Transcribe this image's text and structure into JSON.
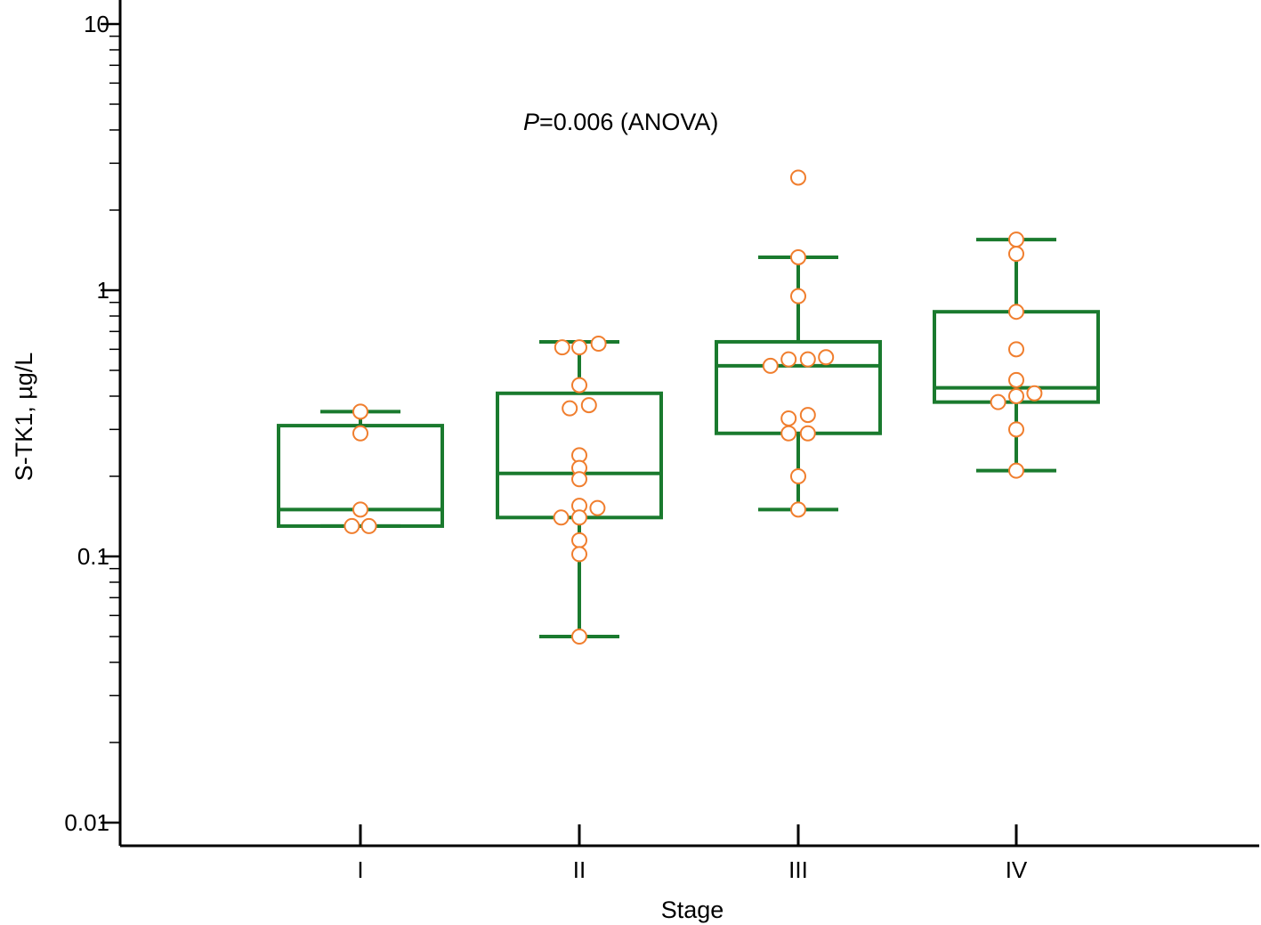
{
  "chart_data": {
    "type": "box",
    "xlabel": "Stage",
    "ylabel": "S-TK1, µg/L",
    "yscale": "log",
    "ylim": [
      0.01,
      10
    ],
    "yticks": [
      {
        "value": 0.01,
        "label": "0.01"
      },
      {
        "value": 0.1,
        "label": "0.1"
      },
      {
        "value": 1,
        "label": "1"
      },
      {
        "value": 10,
        "label": "10"
      }
    ],
    "annotation": {
      "italic": "P",
      "text": "=0.006 (ANOVA)"
    },
    "colors": {
      "box": "#1a7a2e",
      "points": "#f07e2e",
      "axis": "#000000"
    },
    "categories": [
      "I",
      "II",
      "III",
      "IV"
    ],
    "groups": [
      {
        "category": "I",
        "box": {
          "whisker_low": 0.13,
          "q1": 0.13,
          "median": 0.15,
          "q3": 0.31,
          "whisker_high": 0.35
        },
        "points": [
          {
            "y": 0.35,
            "dx": 0
          },
          {
            "y": 0.29,
            "dx": 0
          },
          {
            "y": 0.15,
            "dx": 0
          },
          {
            "y": 0.13,
            "dx": -0.4
          },
          {
            "y": 0.13,
            "dx": 0.4
          }
        ]
      },
      {
        "category": "II",
        "box": {
          "whisker_low": 0.05,
          "q1": 0.14,
          "median": 0.205,
          "q3": 0.41,
          "whisker_high": 0.64
        },
        "points": [
          {
            "y": 0.63,
            "dx": 0.9
          },
          {
            "y": 0.61,
            "dx": -0.8
          },
          {
            "y": 0.61,
            "dx": 0
          },
          {
            "y": 0.44,
            "dx": 0
          },
          {
            "y": 0.37,
            "dx": 0.45
          },
          {
            "y": 0.36,
            "dx": -0.45
          },
          {
            "y": 0.24,
            "dx": 0
          },
          {
            "y": 0.215,
            "dx": 0
          },
          {
            "y": 0.195,
            "dx": 0
          },
          {
            "y": 0.155,
            "dx": 0
          },
          {
            "y": 0.152,
            "dx": 0.85
          },
          {
            "y": 0.14,
            "dx": -0.85
          },
          {
            "y": 0.14,
            "dx": 0
          },
          {
            "y": 0.115,
            "dx": 0
          },
          {
            "y": 0.102,
            "dx": 0
          },
          {
            "y": 0.05,
            "dx": 0
          }
        ]
      },
      {
        "category": "III",
        "box": {
          "whisker_low": 0.15,
          "q1": 0.29,
          "median": 0.52,
          "q3": 0.64,
          "whisker_high": 1.33
        },
        "points": [
          {
            "y": 2.65,
            "dx": 0
          },
          {
            "y": 1.33,
            "dx": 0
          },
          {
            "y": 0.95,
            "dx": 0
          },
          {
            "y": 0.56,
            "dx": 1.3
          },
          {
            "y": 0.55,
            "dx": 0.45
          },
          {
            "y": 0.55,
            "dx": -0.45
          },
          {
            "y": 0.52,
            "dx": -1.3
          },
          {
            "y": 0.34,
            "dx": 0.45
          },
          {
            "y": 0.33,
            "dx": -0.45
          },
          {
            "y": 0.29,
            "dx": -0.45
          },
          {
            "y": 0.29,
            "dx": 0.45
          },
          {
            "y": 0.2,
            "dx": 0
          },
          {
            "y": 0.15,
            "dx": 0
          }
        ]
      },
      {
        "category": "IV",
        "box": {
          "whisker_low": 0.21,
          "q1": 0.38,
          "median": 0.43,
          "q3": 0.83,
          "whisker_high": 1.55
        },
        "points": [
          {
            "y": 1.55,
            "dx": 0
          },
          {
            "y": 1.37,
            "dx": 0
          },
          {
            "y": 0.83,
            "dx": 0
          },
          {
            "y": 0.6,
            "dx": 0
          },
          {
            "y": 0.46,
            "dx": 0
          },
          {
            "y": 0.41,
            "dx": 0.85
          },
          {
            "y": 0.4,
            "dx": 0
          },
          {
            "y": 0.38,
            "dx": -0.85
          },
          {
            "y": 0.3,
            "dx": 0
          },
          {
            "y": 0.21,
            "dx": 0
          }
        ]
      }
    ]
  }
}
